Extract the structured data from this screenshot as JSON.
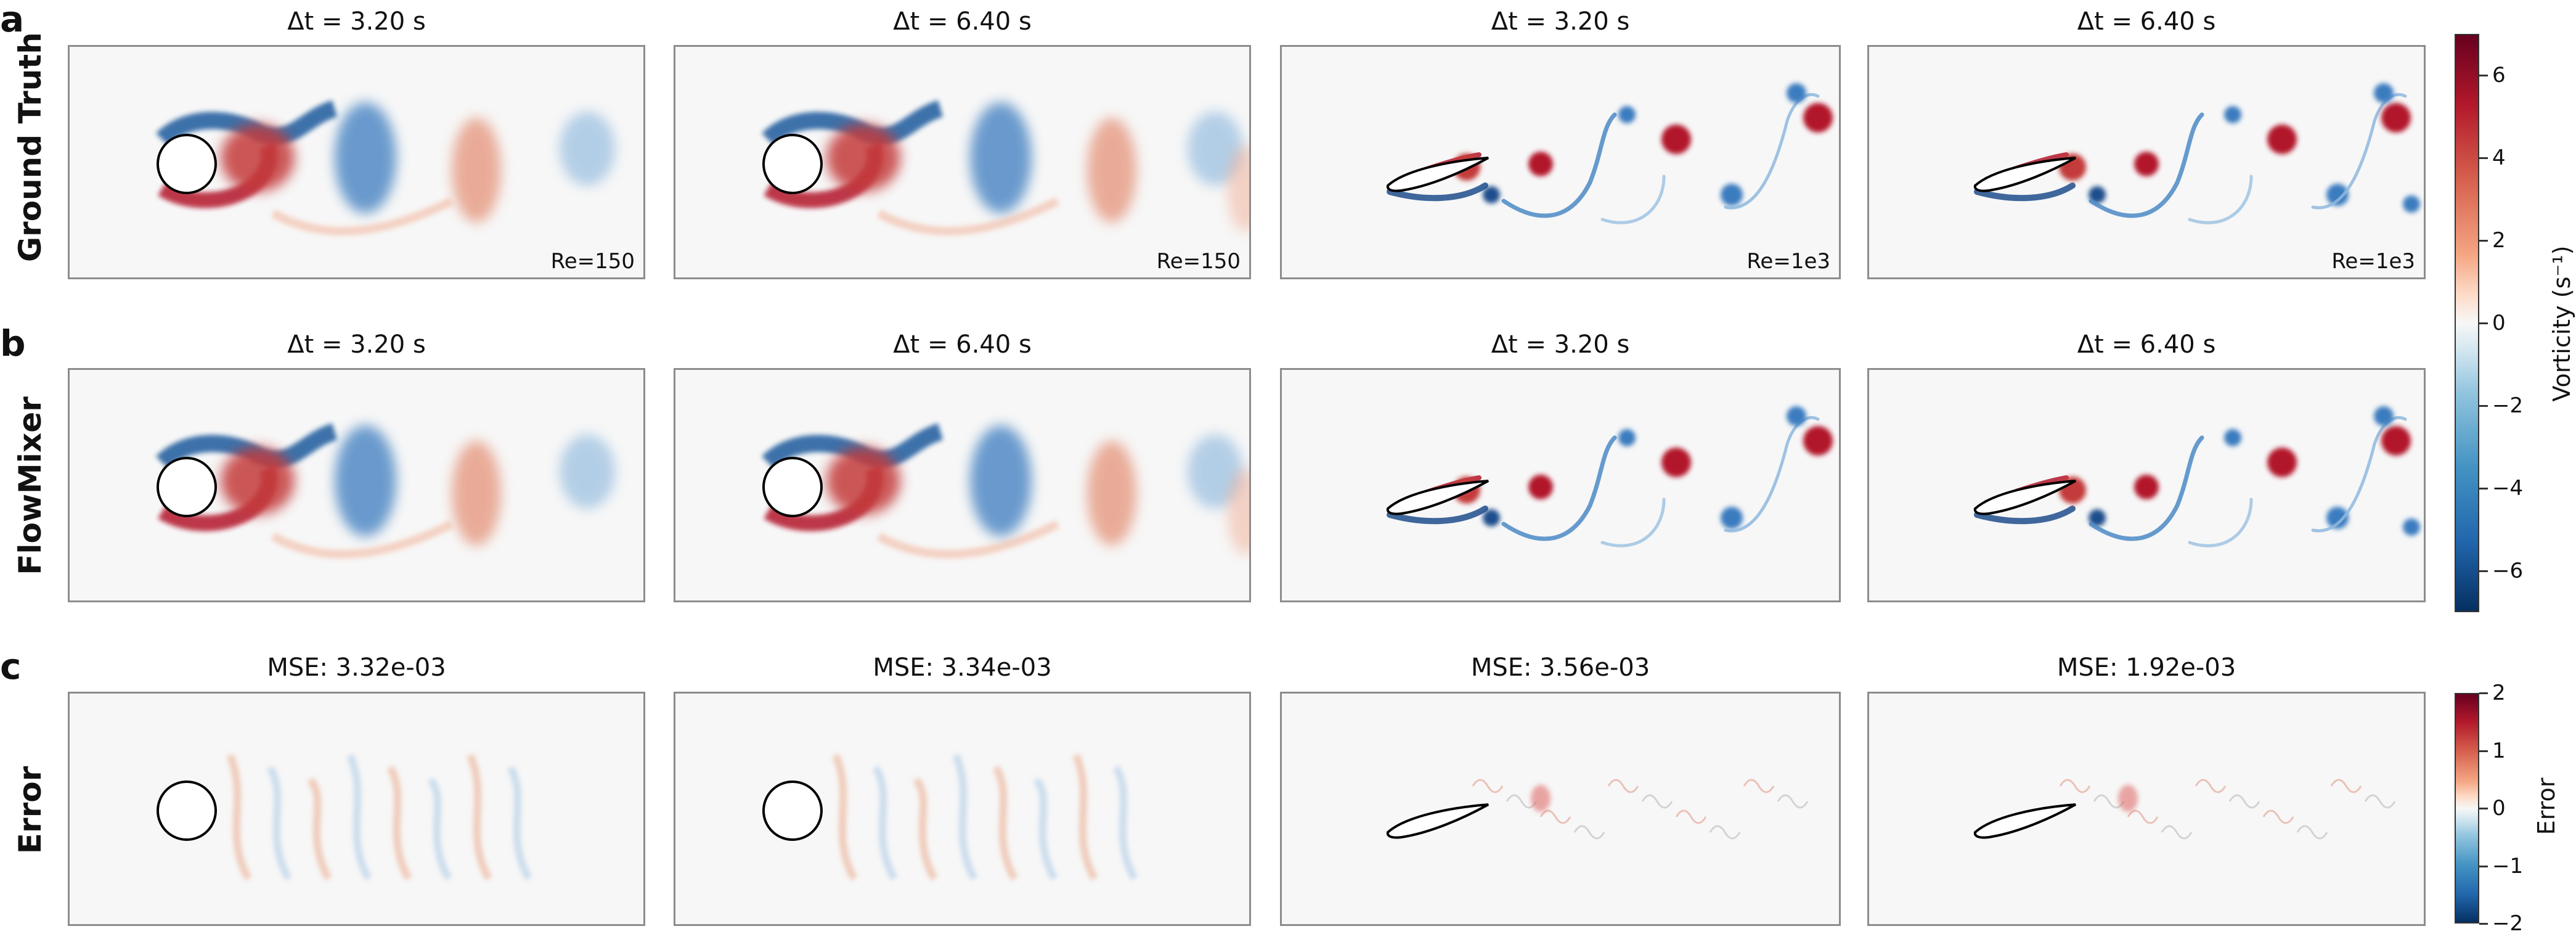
{
  "chart_data": {
    "type": "heatmap",
    "rows": [
      {
        "letter": "a",
        "label": "Ground Truth"
      },
      {
        "letter": "b",
        "label": "FlowMixer"
      },
      {
        "letter": "c",
        "label": "Error"
      }
    ],
    "columns": [
      {
        "geometry": "cylinder",
        "re": "Re=150",
        "time": "Δt = 3.20 s",
        "mse": "MSE: 3.32e-03",
        "mse_value": 0.00332,
        "phase": 0.0
      },
      {
        "geometry": "cylinder",
        "re": "Re=150",
        "time": "Δt = 6.40 s",
        "mse": "MSE: 3.34e-03",
        "mse_value": 0.00334,
        "phase": 1.0
      },
      {
        "geometry": "airfoil",
        "re": "Re=1e3",
        "time": "Δt = 3.20 s",
        "mse": "MSE: 3.56e-03",
        "mse_value": 0.00356,
        "phase": 0.0
      },
      {
        "geometry": "airfoil",
        "re": "Re=1e3",
        "time": "Δt = 6.40 s",
        "mse": "MSE: 1.92e-03",
        "mse_value": 0.00192,
        "phase": 1.0
      }
    ],
    "colorbars": [
      {
        "label": "Vorticity (s⁻¹)",
        "range": [
          -7,
          7
        ],
        "ticks": [
          "6",
          "4",
          "2",
          "0",
          "−2",
          "−4",
          "−6"
        ],
        "tick_values": [
          6,
          4,
          2,
          0,
          -2,
          -4,
          -6
        ],
        "colormap": "RdBu_r"
      },
      {
        "label": "Error",
        "range": [
          -2,
          2
        ],
        "ticks": [
          "2",
          "1",
          "0",
          "−1",
          "−2"
        ],
        "tick_values": [
          2,
          1,
          0,
          -1,
          -2
        ],
        "colormap": "RdBu_r"
      }
    ],
    "colors": {
      "negative": "#1f4e8c",
      "positive": "#b2182b",
      "neutral": "#f7f7f7",
      "frame": "#8c8c8c"
    }
  }
}
